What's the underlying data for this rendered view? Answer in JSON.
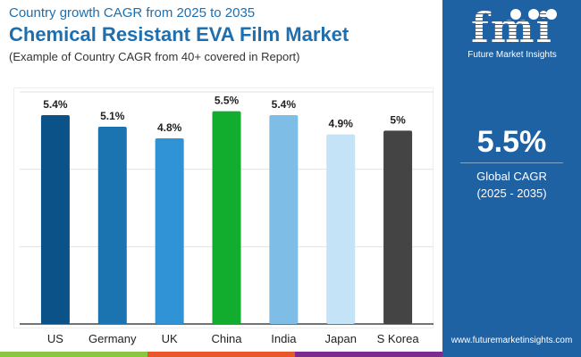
{
  "header": {
    "subtitle_top": "Country growth CAGR from 2025 to 2035",
    "title": "Chemical Resistant EVA Film Market",
    "note": "(Example of Country CAGR from 40+ covered in Report)"
  },
  "panel": {
    "logo_text": "fmi",
    "logo_name": "Future Market Insights",
    "global_value": "5.5%",
    "global_label": "Global CAGR",
    "global_period": "(2025 - 2035)",
    "url": "www.futuremarketinsights.com",
    "bg_color": "#1f62a3"
  },
  "footer_colors": [
    "#8cc63f",
    "#e8562a",
    "#7b2d8e"
  ],
  "chart_data": {
    "type": "bar",
    "categories": [
      "US",
      "Germany",
      "UK",
      "China",
      "India",
      "Japan",
      "S Korea"
    ],
    "values": [
      5.4,
      5.1,
      4.8,
      5.5,
      5.4,
      4.9,
      5.0
    ],
    "labels": [
      "5.4%",
      "5.1%",
      "4.8%",
      "5.5%",
      "5.4%",
      "4.9%",
      "5%"
    ],
    "colors": [
      "#0b5288",
      "#1b74b0",
      "#2f93d6",
      "#12ad2f",
      "#7ebde6",
      "#c4e3f6",
      "#444444"
    ],
    "ylim": [
      0,
      6
    ],
    "grid": true,
    "title": "",
    "xlabel": "",
    "ylabel": ""
  }
}
